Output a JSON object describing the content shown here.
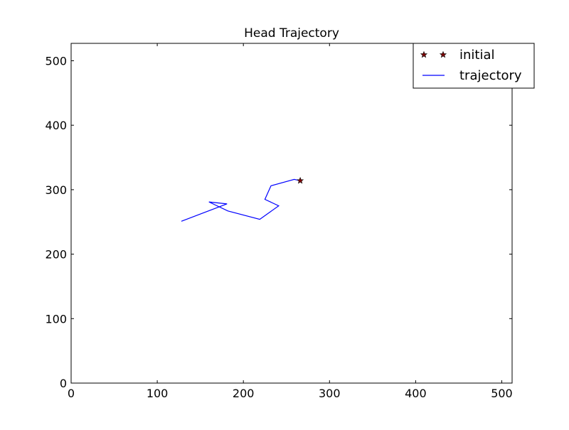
{
  "chart_data": {
    "type": "line",
    "title": "Head Trajectory",
    "xlabel": "",
    "ylabel": "",
    "xlim": [
      0,
      512
    ],
    "ylim": [
      0,
      527
    ],
    "xticks": [
      0,
      100,
      200,
      300,
      400,
      500
    ],
    "yticks": [
      0,
      100,
      200,
      300,
      400,
      500
    ],
    "grid": false,
    "legend_position": "top-right",
    "series": [
      {
        "name": "initial",
        "kind": "marker",
        "marker": "star",
        "color": "#800000",
        "points": [
          [
            266,
            314
          ]
        ]
      },
      {
        "name": "trajectory",
        "kind": "line",
        "color": "#0000ff",
        "points": [
          [
            266,
            314
          ],
          [
            259,
            316
          ],
          [
            232,
            306
          ],
          [
            225,
            285
          ],
          [
            241,
            275
          ],
          [
            219,
            254
          ],
          [
            182,
            267
          ],
          [
            160,
            281
          ],
          [
            181,
            278
          ],
          [
            128,
            251
          ]
        ]
      }
    ],
    "extra_segment_note": ""
  }
}
